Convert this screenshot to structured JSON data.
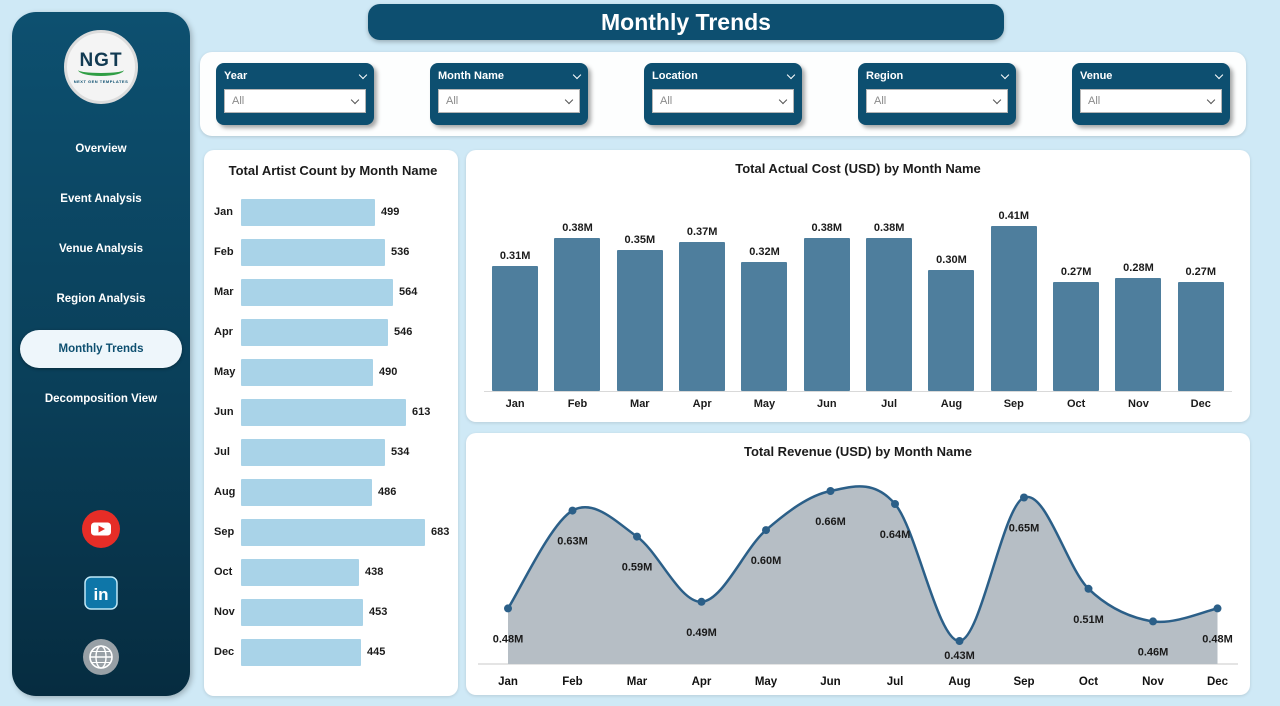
{
  "page": {
    "title": "Monthly Trends"
  },
  "colors": {
    "accent": "#0d4f70",
    "background": "#cfe9f6",
    "light_bar": "#a9d3e8",
    "steel_bar": "#4e7e9d",
    "area_fill": "#b6bec5",
    "area_line": "#2b5f88"
  },
  "sidebar": {
    "logo_text": "NGT",
    "logo_subtext": "NEXT GEN TEMPLATES",
    "items": [
      {
        "label": "Overview",
        "active": false
      },
      {
        "label": "Event Analysis",
        "active": false
      },
      {
        "label": "Venue Analysis",
        "active": false
      },
      {
        "label": "Region Analysis",
        "active": false
      },
      {
        "label": "Monthly Trends",
        "active": true
      },
      {
        "label": "Decomposition View",
        "active": false
      }
    ],
    "social": [
      "youtube",
      "linkedin",
      "website"
    ]
  },
  "filters": [
    {
      "label": "Year",
      "value": "All"
    },
    {
      "label": "Month Name",
      "value": "All"
    },
    {
      "label": "Location",
      "value": "All"
    },
    {
      "label": "Region",
      "value": "All"
    },
    {
      "label": "Venue",
      "value": "All"
    }
  ],
  "chart_data": [
    {
      "type": "bar",
      "orientation": "horizontal",
      "title": "Total Artist Count by Month Name",
      "categories": [
        "Jan",
        "Feb",
        "Mar",
        "Apr",
        "May",
        "Jun",
        "Jul",
        "Aug",
        "Sep",
        "Oct",
        "Nov",
        "Dec"
      ],
      "values": [
        499,
        536,
        564,
        546,
        490,
        613,
        534,
        486,
        683,
        438,
        453,
        445
      ],
      "bar_color": "#a9d3e8",
      "xlim": [
        0,
        700
      ],
      "grid": false,
      "legend": false
    },
    {
      "type": "bar",
      "orientation": "vertical",
      "title": "Total Actual Cost (USD) by Month Name",
      "categories": [
        "Jan",
        "Feb",
        "Mar",
        "Apr",
        "May",
        "Jun",
        "Jul",
        "Aug",
        "Sep",
        "Oct",
        "Nov",
        "Dec"
      ],
      "values": [
        0.31,
        0.38,
        0.35,
        0.37,
        0.32,
        0.38,
        0.38,
        0.3,
        0.41,
        0.27,
        0.28,
        0.27
      ],
      "labels": [
        "0.31M",
        "0.38M",
        "0.35M",
        "0.37M",
        "0.32M",
        "0.38M",
        "0.38M",
        "0.30M",
        "0.41M",
        "0.27M",
        "0.28M",
        "0.27M"
      ],
      "bar_color": "#4e7e9d",
      "ylim": [
        0,
        0.45
      ],
      "grid": false,
      "legend": false
    },
    {
      "type": "area",
      "title": "Total Revenue (USD) by Month Name",
      "categories": [
        "Jan",
        "Feb",
        "Mar",
        "Apr",
        "May",
        "Jun",
        "Jul",
        "Aug",
        "Sep",
        "Oct",
        "Nov",
        "Dec"
      ],
      "values": [
        0.48,
        0.63,
        0.59,
        0.49,
        0.6,
        0.66,
        0.64,
        0.43,
        0.65,
        0.51,
        0.46,
        0.48
      ],
      "labels": [
        "0.48M",
        "0.63M",
        "0.59M",
        "0.49M",
        "0.60M",
        "0.66M",
        "0.64M",
        "0.43M",
        "0.65M",
        "0.51M",
        "0.46M",
        "0.48M"
      ],
      "line_color": "#2b5f88",
      "fill_color": "#b6bec5",
      "ylim": [
        0.4,
        0.7
      ],
      "grid": false,
      "legend": false
    }
  ]
}
